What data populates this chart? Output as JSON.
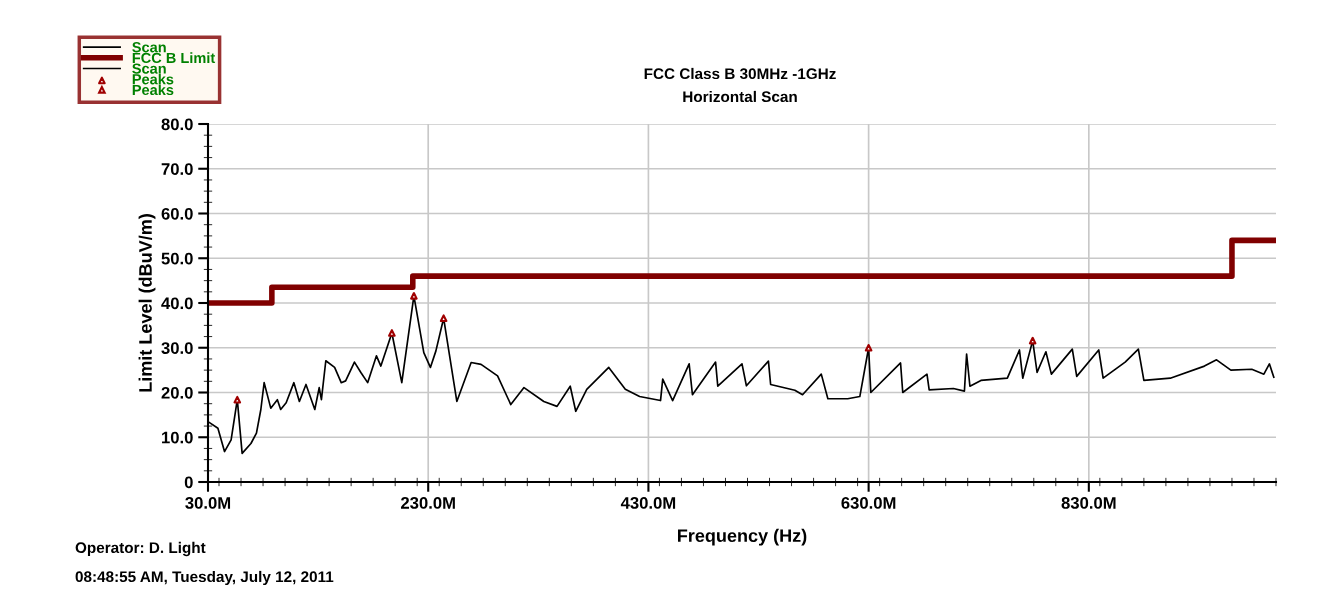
{
  "chart_data": {
    "type": "line",
    "title": "FCC Class B 30MHz -1GHz",
    "subtitle": "Horizontal Scan",
    "xlabel": "Frequency (Hz)",
    "ylabel": "Limit Level (dBuV/m)",
    "annotations": [
      "Operator: D. Light",
      "08:48:55 AM, Tuesday, July 12, 2011"
    ],
    "xlim": [
      30,
      1000
    ],
    "xticks": [
      {
        "value": 30,
        "label": "30.0M"
      },
      {
        "value": 230,
        "label": "230.0M"
      },
      {
        "value": 430,
        "label": "430.0M"
      },
      {
        "value": 630,
        "label": "630.0M"
      },
      {
        "value": 830,
        "label": "830.0M"
      }
    ],
    "ylim": [
      0,
      80
    ],
    "yticks": [
      {
        "value": 0,
        "label": "0"
      },
      {
        "value": 10,
        "label": "10.0"
      },
      {
        "value": 20,
        "label": "20.0"
      },
      {
        "value": 30,
        "label": "30.0"
      },
      {
        "value": 40,
        "label": "40.0"
      },
      {
        "value": 50,
        "label": "50.0"
      },
      {
        "value": 60,
        "label": "60.0"
      },
      {
        "value": 70,
        "label": "70.0"
      },
      {
        "value": 80,
        "label": "80.0"
      }
    ],
    "grid": true,
    "legend": "top left",
    "series": [
      {
        "name": "Scan",
        "color": "#000000",
        "x": [
          30,
          39,
          45,
          51,
          56.6,
          61,
          69,
          74,
          78,
          81,
          87,
          93,
          96,
          101,
          108,
          113,
          119,
          127,
          131,
          133,
          137,
          145,
          151,
          155,
          163,
          169,
          175,
          183,
          187,
          197,
          206,
          217,
          226,
          232,
          237,
          244,
          256,
          269,
          278,
          293,
          305,
          317,
          335,
          347,
          359,
          364,
          374,
          394,
          409,
          422,
          441,
          443,
          452,
          467,
          470,
          491,
          493,
          515,
          519,
          539,
          541,
          563,
          570,
          587,
          593,
          611,
          622,
          630,
          632,
          659,
          661,
          683,
          685,
          707,
          717,
          719,
          722,
          732,
          756,
          767,
          770,
          779,
          783,
          791,
          796,
          815,
          819,
          839,
          843,
          863,
          875,
          880,
          904,
          935,
          946,
          959,
          978,
          989,
          994,
          998
        ],
        "values": [
          13.5,
          12.0,
          6.8,
          9.4,
          18.4,
          6.4,
          8.6,
          10.9,
          16.2,
          22.2,
          16.5,
          18.4,
          16.2,
          17.7,
          22.2,
          18.0,
          21.8,
          16.2,
          21.1,
          18.4,
          27.1,
          25.6,
          22.2,
          22.6,
          26.8,
          24.4,
          22.2,
          28.2,
          25.9,
          33.3,
          22.2,
          41.6,
          28.9,
          25.6,
          29.3,
          36.6,
          18.0,
          26.7,
          26.3,
          23.7,
          17.3,
          21.1,
          18.0,
          16.9,
          21.4,
          15.8,
          20.7,
          25.6,
          20.7,
          19.1,
          18.2,
          23.0,
          18.2,
          26.4,
          19.5,
          26.8,
          21.4,
          26.4,
          21.5,
          27.0,
          21.8,
          20.5,
          19.5,
          24.1,
          18.6,
          18.6,
          19.1,
          30.0,
          20.0,
          26.6,
          20.0,
          24.1,
          20.6,
          20.9,
          20.3,
          28.6,
          21.4,
          22.7,
          23.2,
          29.5,
          23.2,
          31.6,
          24.5,
          29.1,
          24.1,
          29.7,
          23.6,
          29.5,
          23.2,
          26.8,
          29.7,
          22.7,
          23.2,
          25.9,
          27.3,
          25.0,
          25.2,
          24.1,
          26.4,
          23.4
        ]
      },
      {
        "name": "FCC B Limit",
        "type": "step",
        "color": "#800000",
        "x": [
          30,
          88,
          216,
          960,
          1000
        ],
        "values": [
          40,
          43.5,
          46,
          54,
          54
        ]
      },
      {
        "name": "Scan",
        "type": "line",
        "color": "#000000"
      },
      {
        "name": "Peaks",
        "type": "scatter",
        "color": "#a00000",
        "marker": "triangle",
        "x": [
          56.6,
          197,
          217,
          244,
          630,
          779
        ],
        "values": [
          18.4,
          33.3,
          41.6,
          36.6,
          30.0,
          31.6
        ]
      },
      {
        "name": "Peaks",
        "type": "scatter",
        "color": "#a00000",
        "marker": "triangle"
      }
    ]
  }
}
